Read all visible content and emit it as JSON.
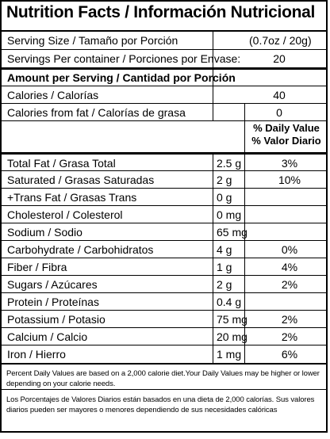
{
  "title": "Nutrition Facts / Información Nutricional",
  "serving_size": {
    "label": "Serving Size / Tamaño por Porción",
    "value": "(0.7oz / 20g)"
  },
  "servings_per_container": {
    "label": "Servings Per container / Porciones por Envase:",
    "value": "20"
  },
  "amount_per_serving": "Amount per Serving / Cantidad por Porción",
  "calories": {
    "label": "Calories / Calorías",
    "value": "40"
  },
  "calories_from_fat": {
    "label": "Calories from fat / Calorías de grasa",
    "value": "0"
  },
  "daily_value_header": {
    "line1": "% Daily Value",
    "line2": "% Valor Diario"
  },
  "nutrients": [
    {
      "label": "Total Fat / Grasa Total",
      "amount": "2.5 g",
      "dv": "3%"
    },
    {
      "label": "Saturated / Grasas Saturadas",
      "amount": "2 g",
      "dv": "10%"
    },
    {
      "label": "+Trans Fat / Grasas Trans",
      "amount": "0 g",
      "dv": ""
    },
    {
      "label": "Cholesterol / Colesterol",
      "amount": "0 mg",
      "dv": ""
    },
    {
      "label": "Sodium / Sodio",
      "amount": "65 mg",
      "dv": ""
    },
    {
      "label": "Carbohydrate / Carbohidratos",
      "amount": "4 g",
      "dv": "0%"
    },
    {
      "label": "Fiber / Fibra",
      "amount": "1 g",
      "dv": "4%"
    },
    {
      "label": "Sugars / Azúcares",
      "amount": "2 g",
      "dv": "2%"
    },
    {
      "label": "Protein / Proteínas",
      "amount": "0.4 g",
      "dv": ""
    },
    {
      "label": "Potassium / Potasio",
      "amount": "75 mg",
      "dv": "2%"
    },
    {
      "label": "Calcium / Calcio",
      "amount": "20 mg",
      "dv": "2%"
    },
    {
      "label": "Iron / Hierro",
      "amount": "1 mg",
      "dv": "6%"
    }
  ],
  "footnote_en": "Percent Daily Values are based on a 2,000 calorie diet.Your Daily Values may be higher or lower depending on your calorie needs.",
  "footnote_es": "Los Porcentajes de Valores Diarios están basados en una dieta de 2,000 calorías. Sus valores diarios pueden ser mayores o menores dependiendo de sus necesidades calóricas"
}
